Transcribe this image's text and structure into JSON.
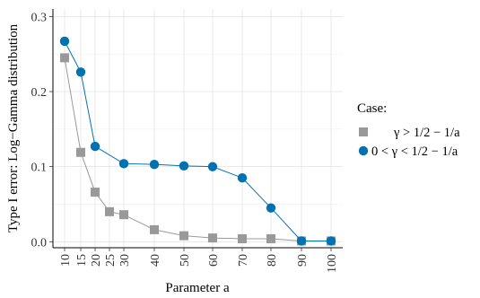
{
  "chart_data": {
    "type": "line",
    "xlabel": "Parameter a",
    "ylabel": "Type I error: Log−Gamma distribution",
    "categories": [
      "10",
      "15",
      "20",
      "25",
      "30",
      "40",
      "50",
      "60",
      "70",
      "80",
      "90",
      "100"
    ],
    "ylim": [
      -0.008,
      0.31
    ],
    "yticks": [
      "0.0",
      "0.1",
      "0.2",
      "0.3"
    ],
    "ytick_values": [
      0,
      0.1,
      0.2,
      0.3
    ],
    "grid": true,
    "legend": {
      "title": "Case:",
      "position": "right"
    },
    "series": [
      {
        "name": "γ > 1/2 − 1/a",
        "marker": "square",
        "color": "#999999",
        "values": [
          0.245,
          0.119,
          0.066,
          0.04,
          0.036,
          0.016,
          0.008,
          0.005,
          0.004,
          0.004,
          0.001,
          0.001
        ]
      },
      {
        "name": "0 < γ < 1/2 − 1/a",
        "marker": "circle",
        "color": "#0072B2",
        "values": [
          0.267,
          0.226,
          0.127,
          null,
          0.104,
          0.103,
          0.101,
          0.1,
          0.085,
          0.045,
          0.001,
          0.001
        ]
      }
    ]
  }
}
